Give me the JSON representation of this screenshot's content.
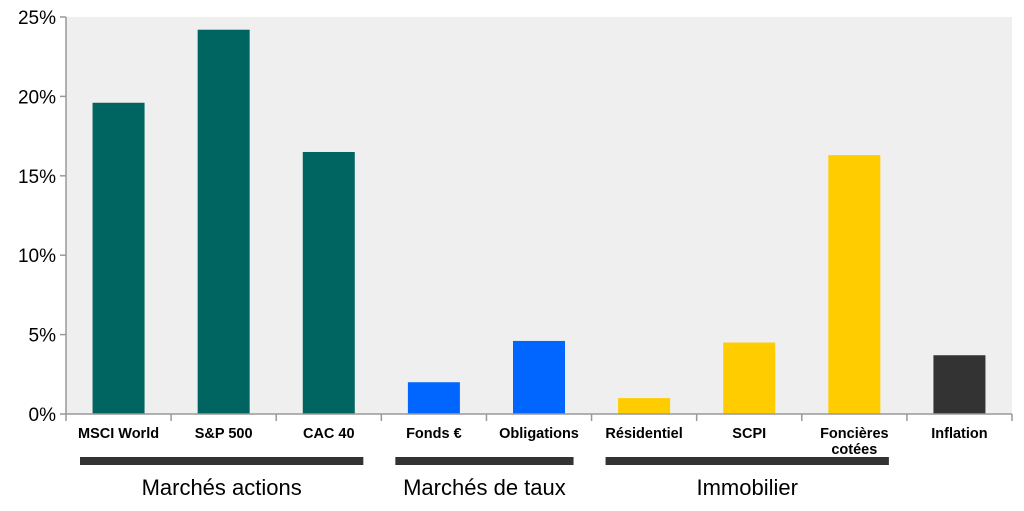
{
  "chart_data": {
    "type": "bar",
    "categories": [
      [
        "MSCI World"
      ],
      [
        "S&P 500"
      ],
      [
        "CAC 40"
      ],
      [
        "Fonds €"
      ],
      [
        "Obligations"
      ],
      [
        "Résidentiel"
      ],
      [
        "SCPI"
      ],
      [
        "Foncières",
        "cotées"
      ],
      [
        "Inflation"
      ]
    ],
    "values": [
      19.6,
      24.2,
      16.5,
      2.0,
      4.6,
      1.0,
      4.5,
      16.3,
      3.7
    ],
    "bar_colors": [
      "#006460",
      "#006460",
      "#006460",
      "#0066ff",
      "#0066ff",
      "#ffcc00",
      "#ffcc00",
      "#ffcc00",
      "#333333"
    ],
    "ylim": [
      0,
      25
    ],
    "yticks": [
      0,
      5,
      10,
      15,
      20,
      25
    ],
    "ytick_labels": [
      "0%",
      "5%",
      "10%",
      "15%",
      "20%",
      "25%"
    ],
    "grid": false,
    "title": "",
    "xlabel": "",
    "ylabel": "",
    "groups": [
      {
        "label": "Marchés actions",
        "from": 0,
        "to": 2
      },
      {
        "label": "Marchés de taux",
        "from": 3,
        "to": 4
      },
      {
        "label": "Immobilier",
        "from": 5,
        "to": 7
      }
    ],
    "colors": {
      "plot_background": "#efefef",
      "axis": "#999999",
      "group_bar": "#333333"
    }
  }
}
